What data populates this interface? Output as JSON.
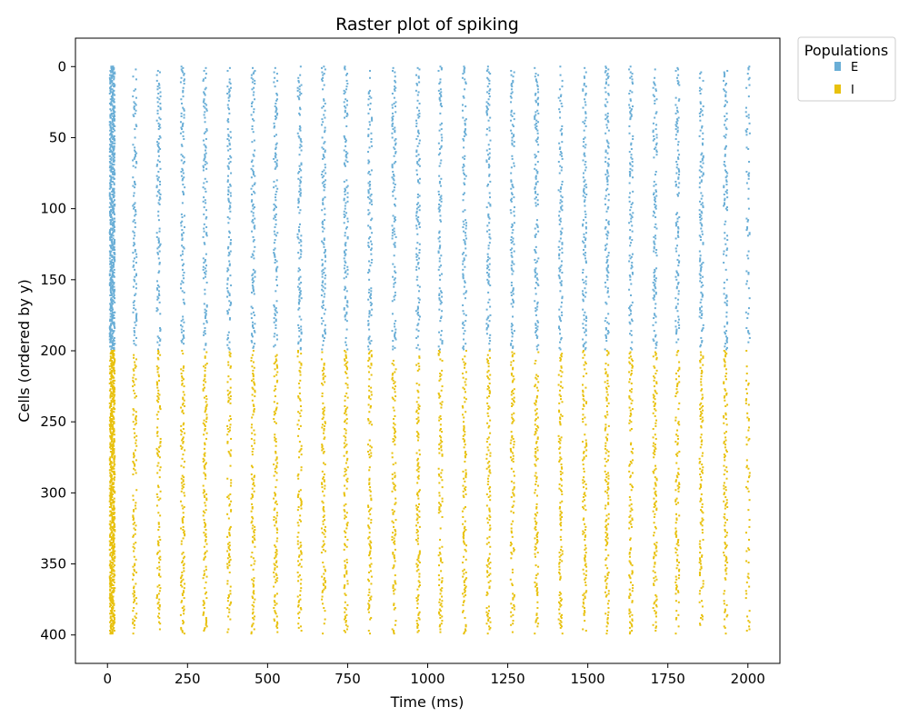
{
  "chart_data": {
    "type": "scatter",
    "title": "Raster plot of spiking",
    "xlabel": "Time (ms)",
    "ylabel": "Cells (ordered by y)",
    "xlim": [
      -100,
      2100
    ],
    "ylim": [
      420,
      -20
    ],
    "y_inverted": true,
    "xticks": [
      0,
      250,
      500,
      750,
      1000,
      1250,
      1500,
      1750,
      2000
    ],
    "yticks": [
      0,
      50,
      100,
      150,
      200,
      250,
      300,
      350,
      400
    ],
    "grid": false,
    "legend": {
      "title": "Populations",
      "placement": "outside-top-right",
      "entries": [
        {
          "label": "E",
          "color": "#6aaed6"
        },
        {
          "label": "I",
          "color": "#e8c10e"
        }
      ]
    },
    "series": [
      {
        "name": "E",
        "color": "#6aaed6",
        "cells": [
          0,
          199
        ]
      },
      {
        "name": "I",
        "color": "#e8c10e",
        "cells": [
          200,
          399
        ]
      }
    ],
    "burst_times_ms": [
      15,
      85,
      160,
      235,
      305,
      380,
      455,
      525,
      600,
      675,
      745,
      820,
      895,
      970,
      1040,
      1115,
      1190,
      1265,
      1340,
      1415,
      1490,
      1560,
      1635,
      1710,
      1780,
      1855,
      1930,
      2000
    ],
    "description_of_pattern": "Spikes occur in synchronized bursts roughly every 72 ms across both populations; the initial burst near 0-20 ms is dense for all cells."
  }
}
